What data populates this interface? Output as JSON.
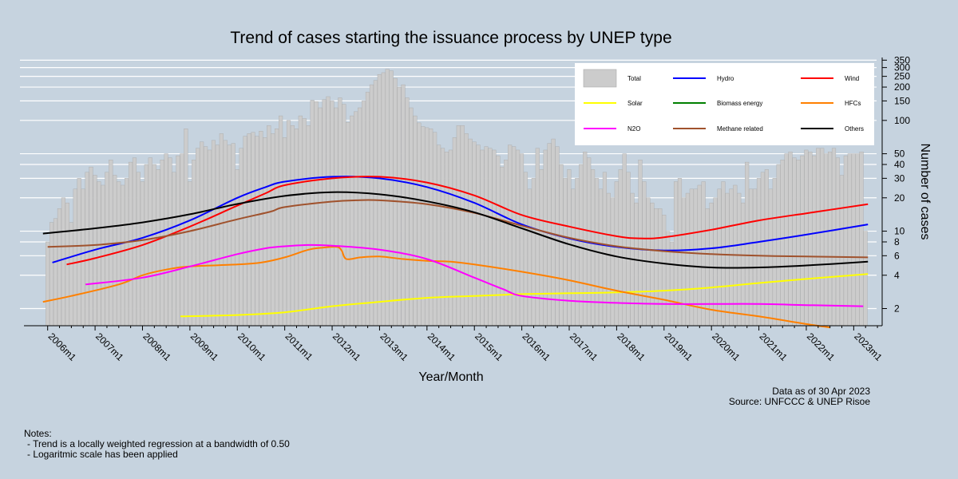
{
  "chart_data": {
    "type": "bar+line",
    "title": "Trend of cases starting the issuance process by UNEP type",
    "xlabel": "Year/Month",
    "ylabel": "Number of cases",
    "yscale": "log",
    "ylim": [
      1.4,
      370
    ],
    "xlim": [
      2005.5,
      2023.6
    ],
    "y_ticks": [
      2,
      4,
      6,
      8,
      10,
      20,
      30,
      40,
      50,
      100,
      150,
      200,
      250,
      300,
      350
    ],
    "y_tick_labels": [
      "2",
      "4",
      "6",
      "8",
      "10",
      "20",
      "30",
      "40",
      "50",
      "100",
      "150",
      "200",
      "250",
      "300",
      "350"
    ],
    "x_ticks": [
      2006,
      2007,
      2008,
      2009,
      2010,
      2011,
      2012,
      2013,
      2014,
      2015,
      2016,
      2017,
      2018,
      2019,
      2020,
      2021,
      2022,
      2023
    ],
    "x_tick_labels": [
      "2006m1",
      "2007m1",
      "2008m1",
      "2009m1",
      "2010m1",
      "2011m1",
      "2012m1",
      "2013m1",
      "2014m1",
      "2015m1",
      "2016m1",
      "2017m1",
      "2018m1",
      "2019m1",
      "2020m1",
      "2021m1",
      "2022m1",
      "2023m1"
    ],
    "bar_series": {
      "name": "Total",
      "color": "#cccccc",
      "annual_values": [
        {
          "year": 2006,
          "values": [
            8,
            12,
            13,
            16,
            20,
            18,
            12,
            24,
            30,
            24,
            34,
            38
          ]
        },
        {
          "year": 2007,
          "values": [
            32,
            28,
            26,
            34,
            44,
            32,
            28,
            26,
            30,
            42,
            46,
            34
          ]
        },
        {
          "year": 2008,
          "values": [
            28,
            40,
            46,
            40,
            36,
            44,
            50,
            46,
            34,
            48,
            50,
            84
          ]
        },
        {
          "year": 2009,
          "values": [
            28,
            44,
            56,
            64,
            58,
            54,
            66,
            60,
            76,
            66,
            60,
            62
          ]
        },
        {
          "year": 2010,
          "values": [
            36,
            56,
            72,
            76,
            78,
            72,
            80,
            70,
            90,
            76,
            84,
            110
          ]
        },
        {
          "year": 2011,
          "values": [
            70,
            100,
            90,
            84,
            110,
            104,
            90,
            152,
            148,
            130,
            154,
            164
          ]
        },
        {
          "year": 2012,
          "values": [
            150,
            130,
            160,
            140,
            96,
            110,
            120,
            130,
            150,
            180,
            210,
            230
          ]
        },
        {
          "year": 2013,
          "values": [
            260,
            270,
            290,
            280,
            240,
            200,
            210,
            160,
            130,
            110,
            95,
            88
          ]
        },
        {
          "year": 2014,
          "values": [
            86,
            84,
            78,
            60,
            56,
            52,
            54,
            70,
            90,
            90,
            76,
            68
          ]
        },
        {
          "year": 2015,
          "values": [
            64,
            60,
            54,
            58,
            56,
            54,
            48,
            38,
            44,
            60,
            58,
            54
          ]
        },
        {
          "year": 2016,
          "values": [
            50,
            34,
            24,
            30,
            56,
            36,
            54,
            62,
            68,
            58,
            40,
            30
          ]
        },
        {
          "year": 2017,
          "values": [
            36,
            24,
            30,
            40,
            52,
            46,
            36,
            30,
            24,
            34,
            22,
            20
          ]
        },
        {
          "year": 2018,
          "values": [
            28,
            36,
            50,
            34,
            22,
            18,
            44,
            28,
            20,
            18,
            16,
            16
          ]
        },
        {
          "year": 2019,
          "values": [
            14,
            10,
            8,
            28,
            30,
            20,
            22,
            24,
            24,
            26,
            28,
            16
          ]
        },
        {
          "year": 2020,
          "values": [
            18,
            20,
            24,
            28,
            22,
            24,
            26,
            22,
            18,
            42,
            24,
            24
          ]
        },
        {
          "year": 2021,
          "values": [
            30,
            34,
            36,
            24,
            30,
            40,
            44,
            50,
            52,
            46,
            44,
            48
          ]
        },
        {
          "year": 2022,
          "values": [
            54,
            52,
            48,
            56,
            56,
            50,
            52,
            56,
            46,
            32,
            48,
            50
          ]
        },
        {
          "year": 2023,
          "values": [
            50,
            50,
            52,
            10
          ]
        }
      ]
    },
    "series": [
      {
        "name": "Hydro",
        "color": "#0000ff",
        "points": [
          [
            2006.1,
            5.2
          ],
          [
            2007,
            6.8
          ],
          [
            2008,
            8.7
          ],
          [
            2009,
            12.5
          ],
          [
            2010,
            20
          ],
          [
            2010.6,
            25
          ],
          [
            2011,
            28
          ],
          [
            2012,
            31
          ],
          [
            2013,
            30
          ],
          [
            2014,
            25
          ],
          [
            2015,
            18
          ],
          [
            2016,
            11.5
          ],
          [
            2017,
            8.6
          ],
          [
            2018,
            7.2
          ],
          [
            2019,
            6.7
          ],
          [
            2020,
            7.0
          ],
          [
            2021,
            8.0
          ],
          [
            2022,
            9.3
          ],
          [
            2023.3,
            11.5
          ]
        ]
      },
      {
        "name": "Wind",
        "color": "#ff0000",
        "points": [
          [
            2006.4,
            5.0
          ],
          [
            2007,
            5.7
          ],
          [
            2008,
            7.5
          ],
          [
            2009,
            11
          ],
          [
            2010,
            17
          ],
          [
            2010.6,
            22
          ],
          [
            2011,
            26
          ],
          [
            2012,
            30
          ],
          [
            2013,
            31
          ],
          [
            2014,
            27.5
          ],
          [
            2015,
            21
          ],
          [
            2016,
            14
          ],
          [
            2017,
            11
          ],
          [
            2018,
            9.0
          ],
          [
            2018.5,
            8.6
          ],
          [
            2019,
            8.8
          ],
          [
            2020,
            10.3
          ],
          [
            2021,
            12.5
          ],
          [
            2022,
            14.5
          ],
          [
            2023.3,
            17.5
          ]
        ]
      },
      {
        "name": "Solar",
        "color": "#ffff00",
        "points": [
          [
            2008.8,
            1.7
          ],
          [
            2010,
            1.75
          ],
          [
            2011,
            1.85
          ],
          [
            2012,
            2.1
          ],
          [
            2013,
            2.3
          ],
          [
            2014,
            2.5
          ],
          [
            2015,
            2.6
          ],
          [
            2016,
            2.7
          ],
          [
            2017,
            2.75
          ],
          [
            2018,
            2.8
          ],
          [
            2019,
            2.9
          ],
          [
            2020,
            3.1
          ],
          [
            2021,
            3.4
          ],
          [
            2022,
            3.7
          ],
          [
            2023.3,
            4.1
          ]
        ]
      },
      {
        "name": "HFCs",
        "color": "#ff8000",
        "points": [
          [
            2005.9,
            2.3
          ],
          [
            2006.5,
            2.6
          ],
          [
            2007.5,
            3.3
          ],
          [
            2008,
            4.0
          ],
          [
            2008.5,
            4.5
          ],
          [
            2009,
            4.8
          ],
          [
            2010,
            5.0
          ],
          [
            2010.5,
            5.2
          ],
          [
            2011,
            5.8
          ],
          [
            2011.5,
            6.8
          ],
          [
            2011.8,
            7.1
          ],
          [
            2012.1,
            7.2
          ],
          [
            2012.2,
            6.7
          ],
          [
            2012.3,
            5.6
          ],
          [
            2012.6,
            5.8
          ],
          [
            2013,
            5.9
          ],
          [
            2013.5,
            5.6
          ],
          [
            2014,
            5.4
          ],
          [
            2014.5,
            5.3
          ],
          [
            2015,
            5.0
          ],
          [
            2016,
            4.3
          ],
          [
            2017,
            3.6
          ],
          [
            2018,
            2.9
          ],
          [
            2019,
            2.4
          ],
          [
            2020,
            1.95
          ],
          [
            2021,
            1.7
          ],
          [
            2022,
            1.45
          ],
          [
            2022.5,
            1.35
          ]
        ]
      },
      {
        "name": "N2O",
        "color": "#ff00ff",
        "points": [
          [
            2006.8,
            3.3
          ],
          [
            2008,
            3.8
          ],
          [
            2009,
            4.8
          ],
          [
            2010,
            6.2
          ],
          [
            2010.6,
            7.0
          ],
          [
            2011,
            7.3
          ],
          [
            2011.5,
            7.5
          ],
          [
            2012,
            7.4
          ],
          [
            2013,
            6.8
          ],
          [
            2014,
            5.6
          ],
          [
            2015,
            3.8
          ],
          [
            2015.6,
            3.0
          ],
          [
            2016,
            2.6
          ],
          [
            2017,
            2.35
          ],
          [
            2018,
            2.25
          ],
          [
            2019,
            2.2
          ],
          [
            2020,
            2.2
          ],
          [
            2021,
            2.2
          ],
          [
            2022,
            2.15
          ],
          [
            2023.2,
            2.1
          ]
        ]
      },
      {
        "name": "Biomass energy",
        "color": "#008000",
        "points": []
      },
      {
        "name": "Methane related",
        "color": "#a0522d",
        "points": [
          [
            2006,
            7.2
          ],
          [
            2007,
            7.5
          ],
          [
            2008,
            8.3
          ],
          [
            2009,
            10
          ],
          [
            2010,
            12.8
          ],
          [
            2010.7,
            15
          ],
          [
            2011,
            16.5
          ],
          [
            2012,
            18.5
          ],
          [
            2012.5,
            19
          ],
          [
            2013,
            19
          ],
          [
            2014,
            17.5
          ],
          [
            2015,
            14.6
          ],
          [
            2016,
            11.2
          ],
          [
            2017,
            8.7
          ],
          [
            2018,
            7.3
          ],
          [
            2019,
            6.6
          ],
          [
            2020,
            6.2
          ],
          [
            2021,
            6.0
          ],
          [
            2022,
            5.9
          ],
          [
            2023.3,
            5.8
          ]
        ]
      },
      {
        "name": "Others",
        "color": "#000000",
        "points": [
          [
            2005.9,
            9.5
          ],
          [
            2007,
            10.6
          ],
          [
            2008,
            12
          ],
          [
            2009,
            14.2
          ],
          [
            2010,
            17.6
          ],
          [
            2011,
            20.8
          ],
          [
            2012,
            22.5
          ],
          [
            2013,
            21.5
          ],
          [
            2014,
            18.6
          ],
          [
            2015,
            14.8
          ],
          [
            2016,
            10.6
          ],
          [
            2017,
            7.6
          ],
          [
            2018,
            5.9
          ],
          [
            2019,
            5.1
          ],
          [
            2020,
            4.7
          ],
          [
            2021,
            4.7
          ],
          [
            2022,
            4.9
          ],
          [
            2023.3,
            5.3
          ]
        ]
      }
    ],
    "legend": {
      "placement": "top-right",
      "entries": [
        {
          "name": "Total",
          "kind": "box",
          "color": "#cccccc"
        },
        {
          "name": "Hydro",
          "kind": "line",
          "color": "#0000ff"
        },
        {
          "name": "Wind",
          "kind": "line",
          "color": "#ff0000"
        },
        {
          "name": "Solar",
          "kind": "line",
          "color": "#ffff00"
        },
        {
          "name": "Biomass energy",
          "kind": "line",
          "color": "#008000"
        },
        {
          "name": "HFCs",
          "kind": "line",
          "color": "#ff8000"
        },
        {
          "name": "N2O",
          "kind": "line",
          "color": "#ff00ff"
        },
        {
          "name": "Methane related",
          "kind": "line",
          "color": "#a0522d"
        },
        {
          "name": "Others",
          "kind": "line",
          "color": "#000000"
        }
      ]
    },
    "grid": true
  },
  "colors": {
    "background": "#c6d3df",
    "grid": "#ffffff",
    "legend_bg": "#ffffff"
  },
  "source": {
    "line1": "Data as of 30 Apr 2023",
    "line2": "Source: UNFCCC & UNEP Risoe"
  },
  "notes": {
    "heading": "Notes:",
    "items": [
      "- Trend is a locally weighted regression at a bandwidth of 0.50",
      "- Logaritmic scale has been applied"
    ]
  }
}
